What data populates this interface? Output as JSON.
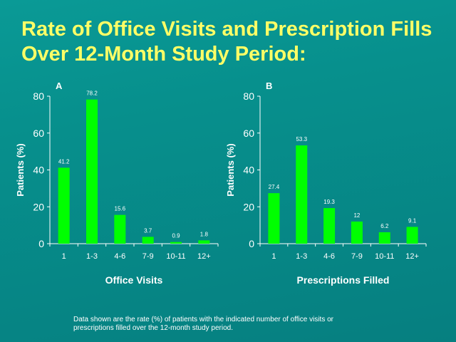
{
  "title": "Rate of Office Visits and Prescription Fills Over 12-Month Study Period:",
  "footnote": "Data shown are the rate (%) of patients with the indicated number of office visits or prescriptions filled over the 12-month study period.",
  "colors": {
    "bar": "#00ff00",
    "title": "#ffff66",
    "background": "#068c8a",
    "text": "#ffffff"
  },
  "chart_data": [
    {
      "type": "bar",
      "panel_label": "A",
      "categories": [
        "1",
        "1-3",
        "4-6",
        "7-9",
        "10-11",
        "12+"
      ],
      "values": [
        41.2,
        78.2,
        15.6,
        3.7,
        0.9,
        1.8
      ],
      "value_labels": [
        "41.2",
        "78.2",
        "15.6",
        "3.7",
        "0.9",
        "1.8"
      ],
      "xlabel": "Office Visits",
      "ylabel": "Patients (%)",
      "ylim": [
        0,
        80
      ],
      "yticks": [
        0,
        20,
        40,
        60,
        80
      ],
      "grid": false
    },
    {
      "type": "bar",
      "panel_label": "B",
      "categories": [
        "1",
        "1-3",
        "4-6",
        "7-9",
        "10-11",
        "12+"
      ],
      "values": [
        27.4,
        53.3,
        19.3,
        12,
        6.2,
        9.1
      ],
      "value_labels": [
        "27.4",
        "53.3",
        "19.3",
        "12",
        "6.2",
        "9.1"
      ],
      "xlabel": "Prescriptions Filled",
      "ylabel": "Patients (%)",
      "ylim": [
        0,
        80
      ],
      "yticks": [
        0,
        20,
        40,
        60,
        80
      ],
      "grid": false
    }
  ]
}
